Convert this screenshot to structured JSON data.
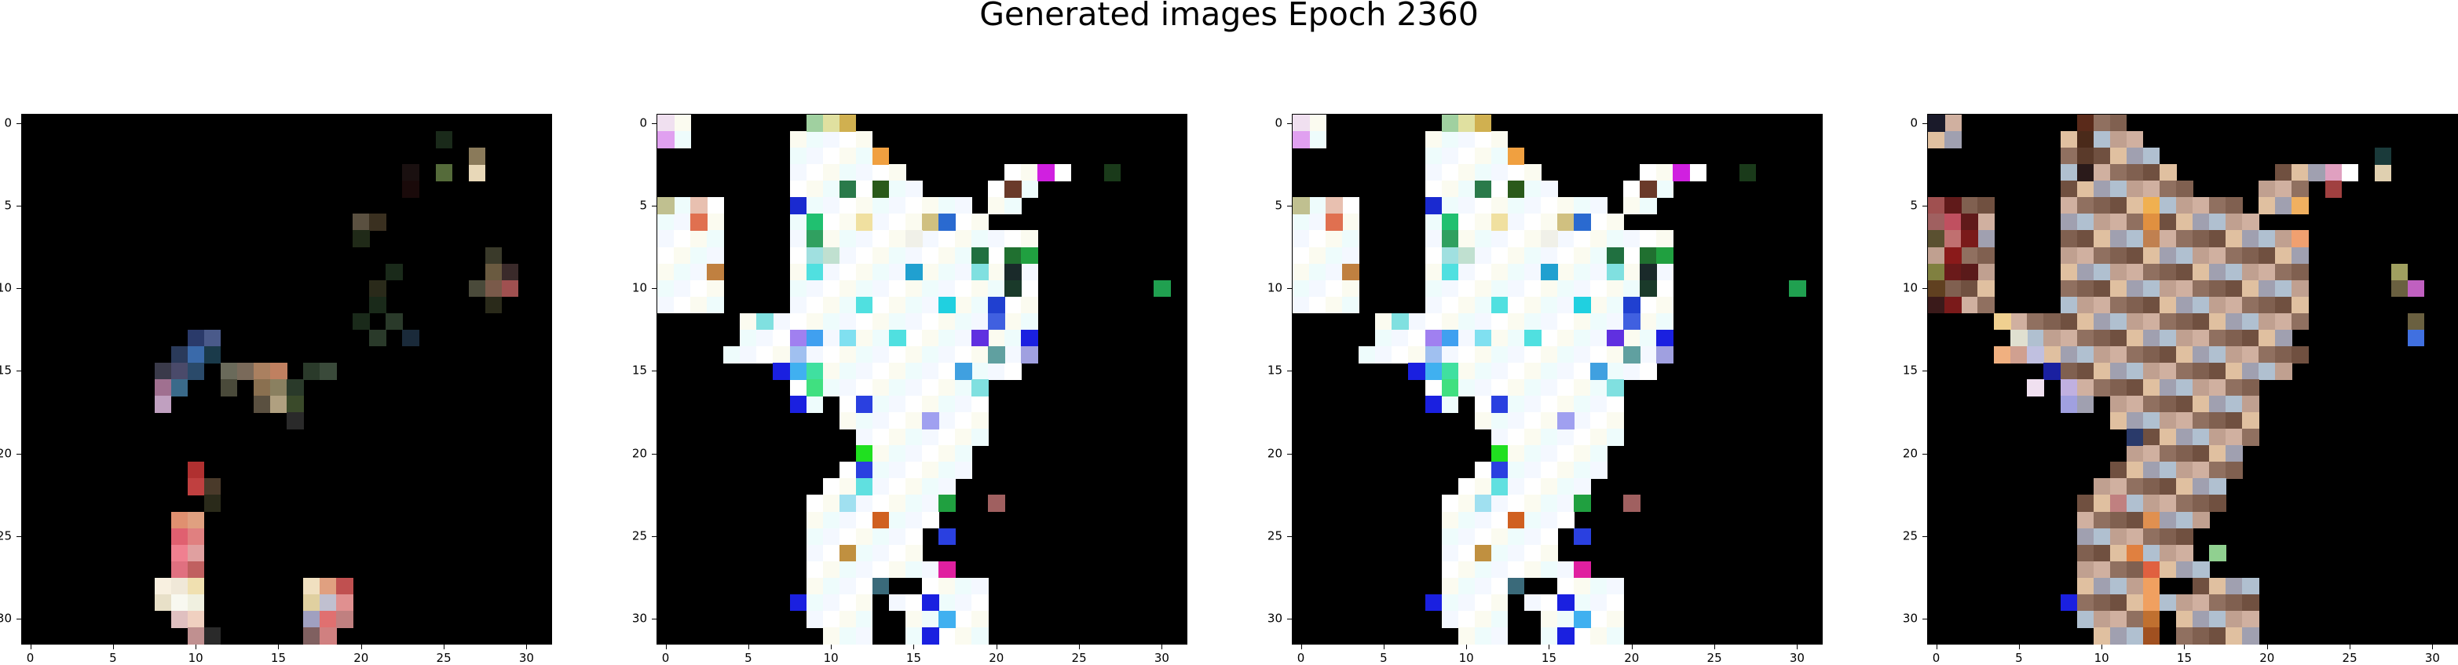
{
  "suptitle": "Generated images Epoch 2360",
  "chart_data": [
    {
      "type": "heatmap",
      "panel": 1,
      "xlim": [
        -0.5,
        31.5
      ],
      "ylim": [
        31.5,
        -0.5
      ],
      "xticks": [
        0,
        5,
        10,
        15,
        20,
        25,
        30
      ],
      "yticks": [
        0,
        5,
        10,
        15,
        20,
        25,
        30
      ],
      "background": "#000000",
      "pixels": [
        [
          1,
          25,
          "#1a2a1a"
        ],
        [
          3,
          25,
          "#556b3a"
        ],
        [
          3,
          27,
          "#e8d8b8"
        ],
        [
          2,
          27,
          "#8a7a5a"
        ],
        [
          3,
          23,
          "#1a1010"
        ],
        [
          4,
          23,
          "#1a0a0a"
        ],
        [
          6,
          20,
          "#5a5040"
        ],
        [
          6,
          21,
          "#3a3020"
        ],
        [
          7,
          20,
          "#202a18"
        ],
        [
          8,
          28,
          "#3a3a2a"
        ],
        [
          9,
          28,
          "#6a5a40"
        ],
        [
          9,
          29,
          "#3a2a2a"
        ],
        [
          10,
          29,
          "#a05050"
        ],
        [
          10,
          28,
          "#7a5a4a"
        ],
        [
          10,
          27,
          "#4a4a3a"
        ],
        [
          11,
          28,
          "#2a2a1a"
        ],
        [
          9,
          22,
          "#1a2a1a"
        ],
        [
          10,
          21,
          "#2a2a1a"
        ],
        [
          11,
          21,
          "#1a2a1a"
        ],
        [
          12,
          22,
          "#2a3a2a"
        ],
        [
          12,
          20,
          "#1a2a1a"
        ],
        [
          13,
          21,
          "#2a3a2a"
        ],
        [
          13,
          23,
          "#1a2a3a"
        ],
        [
          13,
          10,
          "#2a3a6a"
        ],
        [
          13,
          11,
          "#4a5a8a"
        ],
        [
          14,
          10,
          "#3a6aaa"
        ],
        [
          14,
          9,
          "#2a3a5a"
        ],
        [
          14,
          11,
          "#1a3a4a"
        ],
        [
          15,
          8,
          "#3a3a4a"
        ],
        [
          15,
          9,
          "#4a4a6a"
        ],
        [
          15,
          10,
          "#2a4a6a"
        ],
        [
          15,
          12,
          "#6a6a5a"
        ],
        [
          15,
          13,
          "#7a6a5a"
        ],
        [
          15,
          14,
          "#aa8060"
        ],
        [
          15,
          15,
          "#c08060"
        ],
        [
          15,
          17,
          "#2a3a2a"
        ],
        [
          15,
          18,
          "#3a4a3a"
        ],
        [
          16,
          8,
          "#a07090"
        ],
        [
          16,
          9,
          "#3a6a8a"
        ],
        [
          16,
          12,
          "#4a4a3a"
        ],
        [
          16,
          14,
          "#8a7050"
        ],
        [
          16,
          15,
          "#8a8060"
        ],
        [
          16,
          16,
          "#2a3a2a"
        ],
        [
          17,
          8,
          "#c0a0c0"
        ],
        [
          17,
          14,
          "#5a5040"
        ],
        [
          17,
          15,
          "#b0a080"
        ],
        [
          17,
          16,
          "#3a4a2a"
        ],
        [
          18,
          16,
          "#2a2a2a"
        ],
        [
          21,
          10,
          "#b03030"
        ],
        [
          22,
          10,
          "#c04040"
        ],
        [
          22,
          11,
          "#4a3a2a"
        ],
        [
          23,
          11,
          "#2a2a1a"
        ],
        [
          24,
          9,
          "#e09070"
        ],
        [
          24,
          10,
          "#e0a080"
        ],
        [
          25,
          9,
          "#e06070"
        ],
        [
          25,
          10,
          "#e08080"
        ],
        [
          26,
          9,
          "#f08090"
        ],
        [
          26,
          10,
          "#e0a0a0"
        ],
        [
          27,
          9,
          "#e07080"
        ],
        [
          27,
          10,
          "#c06060"
        ],
        [
          28,
          8,
          "#f8f0e0"
        ],
        [
          28,
          9,
          "#f0e8d8"
        ],
        [
          28,
          10,
          "#f0e0b0"
        ],
        [
          28,
          17,
          "#f0e0c0"
        ],
        [
          28,
          18,
          "#e0a080"
        ],
        [
          28,
          19,
          "#c05050"
        ],
        [
          29,
          8,
          "#e8e0c8"
        ],
        [
          29,
          9,
          "#f8f8f0"
        ],
        [
          29,
          10,
          "#f0f0e0"
        ],
        [
          29,
          17,
          "#e0d0a0"
        ],
        [
          29,
          18,
          "#c0c0d0"
        ],
        [
          29,
          19,
          "#e09090"
        ],
        [
          30,
          9,
          "#e0c0c0"
        ],
        [
          30,
          10,
          "#f0d0c0"
        ],
        [
          30,
          17,
          "#a0a0c0"
        ],
        [
          30,
          18,
          "#e07070"
        ],
        [
          30,
          19,
          "#c08080"
        ],
        [
          31,
          10,
          "#c09090"
        ],
        [
          31,
          11,
          "#2a2a2a"
        ],
        [
          31,
          17,
          "#806060"
        ],
        [
          31,
          18,
          "#d08080"
        ]
      ]
    },
    {
      "type": "heatmap",
      "panel": 2,
      "xlim": [
        -0.5,
        31.5
      ],
      "ylim": [
        31.5,
        -0.5
      ],
      "xticks": [
        0,
        5,
        10,
        15,
        20,
        25,
        30
      ],
      "yticks": [
        0,
        5,
        10,
        15,
        20,
        25,
        30
      ],
      "background": "#000000",
      "shape": "white",
      "accents": [
        [
          0,
          0,
          "#f0e0f0"
        ],
        [
          1,
          0,
          "#e0a0f0"
        ],
        [
          0,
          9,
          "#a0d0a0"
        ],
        [
          0,
          10,
          "#e0e0a0"
        ],
        [
          0,
          11,
          "#d0b050"
        ],
        [
          2,
          13,
          "#f0a040"
        ],
        [
          3,
          23,
          "#d020e0"
        ],
        [
          3,
          24,
          "#ffffff"
        ],
        [
          3,
          27,
          "#1a3a1a"
        ],
        [
          4,
          11,
          "#2a7a4a"
        ],
        [
          4,
          13,
          "#2a5a1a"
        ],
        [
          4,
          21,
          "#6a3a2a"
        ],
        [
          5,
          0,
          "#c0c090"
        ],
        [
          5,
          2,
          "#e8c0b0"
        ],
        [
          5,
          8,
          "#1a2ad0"
        ],
        [
          6,
          2,
          "#e07050"
        ],
        [
          6,
          9,
          "#20c070"
        ],
        [
          6,
          12,
          "#f0e0a0"
        ],
        [
          6,
          16,
          "#d0c080"
        ],
        [
          6,
          17,
          "#2a6ad0"
        ],
        [
          7,
          9,
          "#30a060"
        ],
        [
          7,
          15,
          "#f0f0e8"
        ],
        [
          8,
          9,
          "#a0e0e0"
        ],
        [
          8,
          10,
          "#c0e0d0"
        ],
        [
          8,
          19,
          "#207040"
        ],
        [
          8,
          21,
          "#207030"
        ],
        [
          8,
          22,
          "#20a040"
        ],
        [
          9,
          3,
          "#c08040"
        ],
        [
          9,
          9,
          "#50e0e0"
        ],
        [
          9,
          15,
          "#20a0d0"
        ],
        [
          9,
          19,
          "#80e0e0"
        ],
        [
          9,
          21,
          "#1a2a2a"
        ],
        [
          10,
          21,
          "#1a3a2a"
        ],
        [
          10,
          30,
          "#20a050"
        ],
        [
          11,
          12,
          "#50e0e0"
        ],
        [
          11,
          17,
          "#20d0e0"
        ],
        [
          11,
          20,
          "#2040d0"
        ],
        [
          12,
          6,
          "#80e0e0"
        ],
        [
          12,
          20,
          "#4060e0"
        ],
        [
          13,
          8,
          "#a080f0"
        ],
        [
          13,
          9,
          "#40a0f0"
        ],
        [
          13,
          11,
          "#80e0f0"
        ],
        [
          13,
          14,
          "#50e0e0"
        ],
        [
          13,
          19,
          "#6030e0"
        ],
        [
          13,
          22,
          "#1a20e0"
        ],
        [
          14,
          8,
          "#a0c0f0"
        ],
        [
          14,
          20,
          "#60a0a0"
        ],
        [
          14,
          22,
          "#a0a0e0"
        ],
        [
          15,
          7,
          "#1a20e0"
        ],
        [
          15,
          8,
          "#40b0f0"
        ],
        [
          15,
          9,
          "#40e0a0"
        ],
        [
          15,
          18,
          "#40a0e0"
        ],
        [
          16,
          9,
          "#40e080"
        ],
        [
          16,
          19,
          "#80e0e0"
        ],
        [
          17,
          8,
          "#1a20e0"
        ],
        [
          17,
          12,
          "#2a40e0"
        ],
        [
          18,
          16,
          "#a0a0f0"
        ],
        [
          20,
          12,
          "#20e020"
        ],
        [
          21,
          12,
          "#2a40e0"
        ],
        [
          22,
          12,
          "#60e0e0"
        ],
        [
          23,
          11,
          "#a0e0f0"
        ],
        [
          23,
          17,
          "#20a040"
        ],
        [
          23,
          20,
          "#a06060"
        ],
        [
          24,
          13,
          "#d06020"
        ],
        [
          25,
          17,
          "#2a40e0"
        ],
        [
          26,
          11,
          "#c09040"
        ],
        [
          27,
          17,
          "#e020a0"
        ],
        [
          28,
          13,
          "#3a6a7a"
        ],
        [
          29,
          8,
          "#1a20e0"
        ],
        [
          29,
          16,
          "#1a20e0"
        ],
        [
          30,
          17,
          "#40b0f0"
        ],
        [
          31,
          16,
          "#1a20e0"
        ]
      ]
    },
    {
      "type": "heatmap",
      "panel": 3,
      "xlim": [
        -0.5,
        31.5
      ],
      "ylim": [
        31.5,
        -0.5
      ],
      "xticks": [
        0,
        5,
        10,
        15,
        20,
        25,
        30
      ],
      "yticks": [
        0,
        5,
        10,
        15,
        20,
        25,
        30
      ],
      "background": "#000000",
      "shape": "white",
      "same_as_panel": 2
    },
    {
      "type": "heatmap",
      "panel": 4,
      "xlim": [
        -0.5,
        31.5
      ],
      "ylim": [
        31.5,
        -0.5
      ],
      "xticks": [
        0,
        5,
        10,
        15,
        20,
        25,
        30
      ],
      "yticks": [
        0,
        5,
        10,
        15,
        20,
        25,
        30
      ],
      "background": "#000000",
      "shape": "color",
      "accents": [
        [
          0,
          0,
          "#1a1a2a"
        ],
        [
          0,
          9,
          "#5a2a1a"
        ],
        [
          1,
          9,
          "#4a2a1a"
        ],
        [
          2,
          9,
          "#5a3a2a"
        ],
        [
          3,
          9,
          "#2a1a1a"
        ],
        [
          3,
          24,
          "#e0a0c0"
        ],
        [
          3,
          25,
          "#ffffff"
        ],
        [
          3,
          27,
          "#e0d0b0"
        ],
        [
          2,
          27,
          "#1a3a3a"
        ],
        [
          4,
          24,
          "#a04040"
        ],
        [
          5,
          0,
          "#a05050"
        ],
        [
          5,
          1,
          "#601a1a"
        ],
        [
          5,
          13,
          "#f0b050"
        ],
        [
          5,
          22,
          "#f0b060"
        ],
        [
          6,
          0,
          "#a06060"
        ],
        [
          6,
          1,
          "#c05060"
        ],
        [
          6,
          2,
          "#601a1a"
        ],
        [
          6,
          13,
          "#e09040"
        ],
        [
          7,
          0,
          "#5a5030"
        ],
        [
          7,
          1,
          "#c07070"
        ],
        [
          7,
          2,
          "#7a1a1a"
        ],
        [
          7,
          13,
          "#c08050"
        ],
        [
          7,
          22,
          "#f0a070"
        ],
        [
          8,
          1,
          "#8a1a1a"
        ],
        [
          9,
          0,
          "#808040"
        ],
        [
          9,
          1,
          "#6a1a1a"
        ],
        [
          9,
          2,
          "#5a1a1a"
        ],
        [
          9,
          28,
          "#a0a060"
        ],
        [
          10,
          0,
          "#604020"
        ],
        [
          10,
          28,
          "#6a6040"
        ],
        [
          10,
          29,
          "#c060c0"
        ],
        [
          11,
          0,
          "#3a1a1a"
        ],
        [
          11,
          1,
          "#7a1a1a"
        ],
        [
          12,
          4,
          "#f0d090"
        ],
        [
          12,
          29,
          "#6a6040"
        ],
        [
          13,
          5,
          "#e0e0d0"
        ],
        [
          13,
          29,
          "#4070e0"
        ],
        [
          14,
          4,
          "#f0b080"
        ],
        [
          14,
          5,
          "#d0a090"
        ],
        [
          14,
          6,
          "#c0c0e0"
        ],
        [
          15,
          7,
          "#1a20a0"
        ],
        [
          16,
          6,
          "#f0e0f0"
        ],
        [
          16,
          8,
          "#c0b0e0"
        ],
        [
          17,
          8,
          "#a0a0e0"
        ],
        [
          19,
          12,
          "#2a3a6a"
        ],
        [
          23,
          11,
          "#c08080"
        ],
        [
          24,
          13,
          "#e09050"
        ],
        [
          26,
          12,
          "#e08040"
        ],
        [
          26,
          17,
          "#90d090"
        ],
        [
          27,
          13,
          "#e06040"
        ],
        [
          28,
          13,
          "#f0a060"
        ],
        [
          29,
          8,
          "#1a20e0"
        ],
        [
          29,
          13,
          "#f0a060"
        ],
        [
          30,
          13,
          "#c07030"
        ],
        [
          31,
          13,
          "#a05020"
        ]
      ]
    }
  ]
}
